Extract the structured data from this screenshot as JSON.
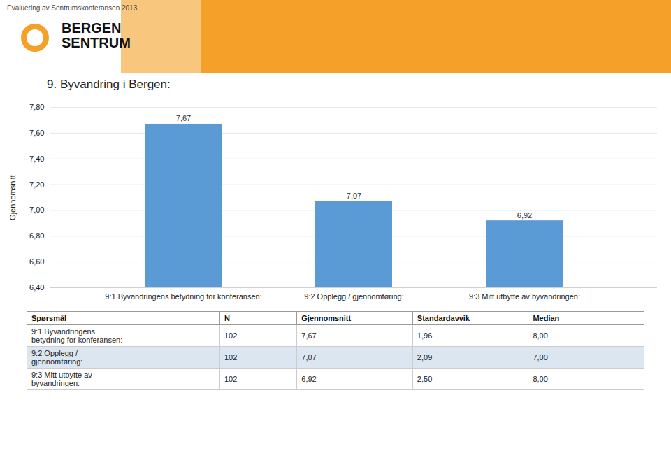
{
  "chart_data": {
    "type": "bar",
    "title": "9. Byvandring i Bergen:",
    "annotations": [
      "Evaluering av Sentrumskonferansen 2013",
      "BERGEN\nSENTRUM"
    ],
    "categories": [
      "9:1 Byvandringens betydning for konferansen:",
      "9:2 Opplegg / gjennomføring:",
      "9:3 Mitt utbytte av byvandringen:"
    ],
    "values": [
      7.67,
      7.07,
      6.92
    ],
    "value_labels": [
      "7,67",
      "7,07",
      "6,92"
    ],
    "data_labels": true,
    "color": "#5B9BD5",
    "ylabel": "Gjennomsnitt",
    "ylim": [
      6.4,
      7.8
    ],
    "yticks": [
      {
        "value": 6.4,
        "label": "6,40"
      },
      {
        "value": 6.6,
        "label": "6,60"
      },
      {
        "value": 6.8,
        "label": "6,80"
      },
      {
        "value": 7.0,
        "label": "7,00"
      },
      {
        "value": 7.2,
        "label": "7,20"
      },
      {
        "value": 7.4,
        "label": "7,40"
      },
      {
        "value": 7.6,
        "label": "7,60"
      },
      {
        "value": 7.8,
        "label": "7,80"
      }
    ],
    "grid": true,
    "table": {
      "headers": [
        "Spørsmål",
        "N",
        "Gjennomsnitt",
        "Standardavvik",
        "Median"
      ],
      "rows": [
        [
          "9:1 Byvandringens\nbetydning for konferansen:",
          "102",
          "7,67",
          "1,96",
          "8,00"
        ],
        [
          "9:2 Opplegg /\ngjennomføring:",
          "102",
          "7,07",
          "2,09",
          "7,00"
        ],
        [
          "9:3 Mitt utbytte av\nbyvandringen:",
          "102",
          "6,92",
          "2,50",
          "8,00"
        ]
      ],
      "colors": [
        "#ffffff",
        "#dce6f1",
        "#ffffff"
      ]
    },
    "header_color": "#f5a028"
  }
}
